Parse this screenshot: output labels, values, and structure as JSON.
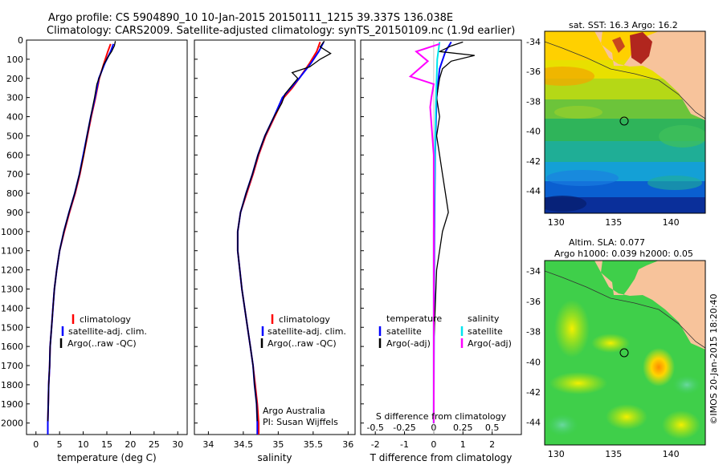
{
  "header": {
    "line1": "Argo profile: CS 5904890_10 10-Jan-2015 20150111_1215 39.337S 136.038E",
    "line2": "Climatology: CARS2009. Satellite-adjusted climatology: synTS_20150109.nc (1.9d earlier)"
  },
  "colors": {
    "climatology": "#ff0000",
    "satellite": "#0000ff",
    "argo": "#000000",
    "sal_satellite": "#00e5ee",
    "sal_argo": "#ff00ff",
    "land": "#f7c39b"
  },
  "footer": {
    "credit": "Argo Australia",
    "pi": "PI: Susan Wijffels",
    "imos": "©IMOS 20-Jan-2015 18:20:40"
  },
  "chart_data": [
    {
      "type": "line",
      "panel": "temperature",
      "xlabel": "temperature (deg C)",
      "ylabel": "",
      "xlim": [
        -2,
        32
      ],
      "ylim": [
        2060,
        0
      ],
      "xticks": [
        0,
        5,
        10,
        15,
        20,
        25,
        30
      ],
      "yticks": [
        0,
        100,
        200,
        300,
        400,
        500,
        600,
        700,
        800,
        900,
        1000,
        1100,
        1200,
        1300,
        1400,
        1500,
        1600,
        1700,
        1800,
        1900,
        2000
      ],
      "legend": [
        "climatology",
        "satellite-adj. clim.",
        "Argo(..raw -QC)"
      ],
      "legend_position": "lower-right",
      "series": [
        {
          "name": "climatology",
          "color": "#ff0000",
          "points": [
            [
              15.8,
              20
            ],
            [
              15.2,
              60
            ],
            [
              14.4,
              120
            ],
            [
              13.4,
              200
            ],
            [
              12.6,
              300
            ],
            [
              11.7,
              400
            ],
            [
              10.9,
              500
            ],
            [
              10.1,
              600
            ],
            [
              9.3,
              700
            ],
            [
              8.3,
              800
            ],
            [
              7.1,
              900
            ],
            [
              6.0,
              1000
            ],
            [
              5.0,
              1100
            ],
            [
              4.4,
              1200
            ],
            [
              3.9,
              1300
            ],
            [
              3.6,
              1400
            ],
            [
              3.3,
              1500
            ],
            [
              3.0,
              1600
            ],
            [
              2.9,
              1700
            ],
            [
              2.7,
              1800
            ],
            [
              2.6,
              1900
            ],
            [
              2.5,
              2000
            ],
            [
              2.5,
              2060
            ]
          ]
        },
        {
          "name": "satellite-adj. clim.",
          "color": "#0000ff",
          "points": [
            [
              16.4,
              20
            ],
            [
              15.8,
              60
            ],
            [
              14.6,
              120
            ],
            [
              13.3,
              200
            ],
            [
              12.5,
              300
            ],
            [
              11.6,
              400
            ],
            [
              10.8,
              500
            ],
            [
              10.0,
              600
            ],
            [
              9.2,
              700
            ],
            [
              8.2,
              800
            ],
            [
              7.0,
              900
            ],
            [
              5.9,
              1000
            ],
            [
              5.0,
              1100
            ],
            [
              4.4,
              1200
            ],
            [
              3.9,
              1300
            ],
            [
              3.6,
              1400
            ],
            [
              3.3,
              1500
            ],
            [
              3.0,
              1600
            ],
            [
              2.9,
              1700
            ],
            [
              2.7,
              1800
            ],
            [
              2.6,
              1900
            ],
            [
              2.5,
              2000
            ],
            [
              2.5,
              2060
            ]
          ]
        },
        {
          "name": "Argo(..raw -QC)",
          "color": "#000000",
          "points": [
            [
              16.8,
              5
            ],
            [
              16.6,
              30
            ],
            [
              16.0,
              60
            ],
            [
              15.2,
              90
            ],
            [
              14.3,
              130
            ],
            [
              13.8,
              170
            ],
            [
              12.9,
              230
            ],
            [
              12.4,
              300
            ],
            [
              11.6,
              400
            ],
            [
              10.8,
              500
            ],
            [
              10.1,
              600
            ],
            [
              9.2,
              700
            ],
            [
              8.2,
              800
            ],
            [
              7.0,
              900
            ],
            [
              5.9,
              1000
            ],
            [
              5.0,
              1100
            ],
            [
              4.4,
              1200
            ],
            [
              3.9,
              1300
            ],
            [
              3.6,
              1400
            ],
            [
              3.3,
              1500
            ],
            [
              3.0,
              1600
            ],
            [
              2.9,
              1700
            ],
            [
              2.7,
              1800
            ],
            [
              2.6,
              1900
            ],
            [
              2.5,
              1990
            ]
          ]
        }
      ]
    },
    {
      "type": "line",
      "panel": "salinity",
      "xlabel": "salinity",
      "ylabel": "",
      "xlim": [
        33.8,
        36.1
      ],
      "ylim": [
        2060,
        0
      ],
      "xticks": [
        34,
        34.5,
        35,
        35.5,
        36
      ],
      "xtick_labels": [
        "34",
        "34.5",
        "35",
        "35.5",
        "36"
      ],
      "legend": [
        "climatology",
        "satellite-adj. clim.",
        "Argo(..raw -QC)"
      ],
      "legend_position": "lower-right",
      "series": [
        {
          "name": "climatology",
          "color": "#ff0000",
          "points": [
            [
              35.6,
              10
            ],
            [
              35.55,
              60
            ],
            [
              35.45,
              120
            ],
            [
              35.3,
              200
            ],
            [
              35.2,
              250
            ],
            [
              35.08,
              300
            ],
            [
              34.95,
              400
            ],
            [
              34.82,
              500
            ],
            [
              34.72,
              600
            ],
            [
              34.64,
              700
            ],
            [
              34.55,
              800
            ],
            [
              34.46,
              900
            ],
            [
              34.42,
              1000
            ],
            [
              34.42,
              1100
            ],
            [
              34.45,
              1200
            ],
            [
              34.48,
              1300
            ],
            [
              34.52,
              1400
            ],
            [
              34.56,
              1500
            ],
            [
              34.6,
              1600
            ],
            [
              34.64,
              1700
            ],
            [
              34.67,
              1800
            ],
            [
              34.7,
              1900
            ],
            [
              34.72,
              2000
            ],
            [
              34.72,
              2060
            ]
          ]
        },
        {
          "name": "satellite-adj. clim.",
          "color": "#0000ff",
          "points": [
            [
              35.65,
              10
            ],
            [
              35.58,
              60
            ],
            [
              35.47,
              120
            ],
            [
              35.3,
              200
            ],
            [
              35.18,
              250
            ],
            [
              35.06,
              300
            ],
            [
              34.94,
              400
            ],
            [
              34.81,
              500
            ],
            [
              34.71,
              600
            ],
            [
              34.63,
              700
            ],
            [
              34.54,
              800
            ],
            [
              34.46,
              900
            ],
            [
              34.42,
              1000
            ],
            [
              34.42,
              1100
            ],
            [
              34.45,
              1200
            ],
            [
              34.48,
              1300
            ],
            [
              34.52,
              1400
            ],
            [
              34.56,
              1500
            ],
            [
              34.6,
              1600
            ],
            [
              34.64,
              1700
            ],
            [
              34.66,
              1800
            ],
            [
              34.69,
              1900
            ],
            [
              34.7,
              2000
            ],
            [
              34.7,
              2060
            ]
          ]
        },
        {
          "name": "Argo(..raw -QC)",
          "color": "#000000",
          "points": [
            [
              35.66,
              5
            ],
            [
              35.6,
              35
            ],
            [
              35.75,
              70
            ],
            [
              35.6,
              100
            ],
            [
              35.45,
              140
            ],
            [
              35.2,
              170
            ],
            [
              35.28,
              200
            ],
            [
              35.1,
              280
            ],
            [
              35.05,
              330
            ],
            [
              34.94,
              400
            ],
            [
              34.81,
              500
            ],
            [
              34.71,
              600
            ],
            [
              34.63,
              700
            ],
            [
              34.54,
              800
            ],
            [
              34.46,
              900
            ],
            [
              34.42,
              1000
            ],
            [
              34.42,
              1100
            ],
            [
              34.45,
              1200
            ],
            [
              34.48,
              1300
            ],
            [
              34.52,
              1400
            ],
            [
              34.56,
              1500
            ],
            [
              34.6,
              1600
            ],
            [
              34.64,
              1700
            ],
            [
              34.66,
              1800
            ],
            [
              34.69,
              1900
            ],
            [
              34.7,
              1990
            ]
          ]
        }
      ]
    },
    {
      "type": "line",
      "panel": "difference",
      "xlabel": "T difference from climatology",
      "xlabel_top": "S difference from climatology",
      "xlim": [
        -2.5,
        3
      ],
      "ylim": [
        2060,
        0
      ],
      "xticks": [
        -2,
        -1,
        0,
        1,
        2
      ],
      "s_ticks": [
        -0.5,
        -0.25,
        0,
        0.25,
        0.5
      ],
      "s_tick_labels": [
        "-0.5",
        "-0.25",
        "0",
        "0.25",
        "0.5"
      ],
      "legend_t": {
        "title": "temperature",
        "items": [
          "satellite",
          "Argo(-adj)"
        ]
      },
      "legend_s": {
        "title": "salinity",
        "items": [
          "satellite",
          "Argo(-adj)"
        ]
      },
      "series": [
        {
          "name": "temperature satellite",
          "color": "#0000ff",
          "points": [
            [
              0.6,
              10
            ],
            [
              0.4,
              60
            ],
            [
              0.2,
              150
            ],
            [
              0.1,
              300
            ],
            [
              0.05,
              600
            ],
            [
              0.02,
              1000
            ],
            [
              0,
              2000
            ]
          ]
        },
        {
          "name": "temperature Argo(-adj)",
          "color": "#000000",
          "points": [
            [
              1.0,
              10
            ],
            [
              0.6,
              30
            ],
            [
              0.2,
              60
            ],
            [
              1.4,
              80
            ],
            [
              0.6,
              110
            ],
            [
              0.3,
              150
            ],
            [
              0.2,
              200
            ],
            [
              0.1,
              300
            ],
            [
              0.2,
              400
            ],
            [
              0.1,
              500
            ],
            [
              0.2,
              600
            ],
            [
              0.3,
              700
            ],
            [
              0.4,
              800
            ],
            [
              0.5,
              900
            ],
            [
              0.3,
              1000
            ],
            [
              0.2,
              1100
            ],
            [
              0.1,
              1200
            ],
            [
              0.05,
              1400
            ],
            [
              0,
              1600
            ],
            [
              0,
              2000
            ]
          ]
        },
        {
          "name": "salinity satellite",
          "color": "#00e5ee",
          "points": [
            [
              0.05,
              10
            ],
            [
              0.03,
              100
            ],
            [
              0.02,
              300
            ],
            [
              0.01,
              600
            ],
            [
              0,
              1000
            ],
            [
              0,
              2000
            ]
          ]
        },
        {
          "name": "salinity Argo(-adj)",
          "color": "#ff00ff",
          "points": [
            [
              0.05,
              20
            ],
            [
              -0.15,
              60
            ],
            [
              -0.05,
              110
            ],
            [
              -0.2,
              190
            ],
            [
              0.0,
              230
            ],
            [
              -0.02,
              300
            ],
            [
              -0.03,
              350
            ],
            [
              0,
              600
            ],
            [
              0,
              2000
            ]
          ]
        }
      ]
    },
    {
      "type": "heatmap",
      "panel": "sst-map",
      "title": "sat. SST: 16.3 Argo: 16.2",
      "xlim": [
        129,
        143
      ],
      "ylim": [
        -45.5,
        -33.3
      ],
      "xticks": [
        130,
        135,
        140
      ],
      "yticks": [
        -44,
        -42,
        -40,
        -38,
        -36,
        -34
      ],
      "marker": [
        136.04,
        -39.34
      ]
    },
    {
      "type": "heatmap",
      "panel": "sla-map",
      "title_line1": "Altim. SLA: 0.077",
      "title_line2": "Argo h1000: 0.039 h2000: 0.05",
      "xlim": [
        129,
        143
      ],
      "ylim": [
        -45.5,
        -33.3
      ],
      "xticks": [
        130,
        135,
        140
      ],
      "yticks": [
        -44,
        -42,
        -40,
        -38,
        -36,
        -34
      ],
      "marker": [
        136.04,
        -39.34
      ]
    }
  ]
}
